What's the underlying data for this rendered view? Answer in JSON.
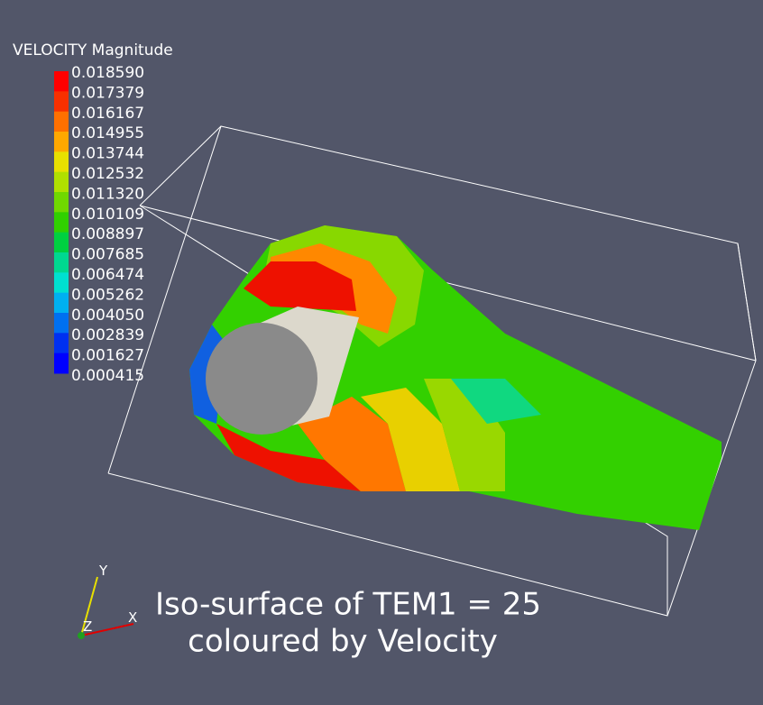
{
  "legend": {
    "title": "VELOCITY Magnitude",
    "labels": [
      "0.018590",
      "0.017379",
      "0.016167",
      "0.014955",
      "0.013744",
      "0.012532",
      "0.011320",
      "0.010109",
      "0.008897",
      "0.007685",
      "0.006474",
      "0.005262",
      "0.004050",
      "0.002839",
      "0.001627",
      "0.000415"
    ]
  },
  "caption": {
    "line1": "Iso-surface of TEM1 = 25",
    "line2": "coloured by Velocity"
  },
  "axes": {
    "x": "X",
    "y": "Y",
    "z": "Z"
  }
}
